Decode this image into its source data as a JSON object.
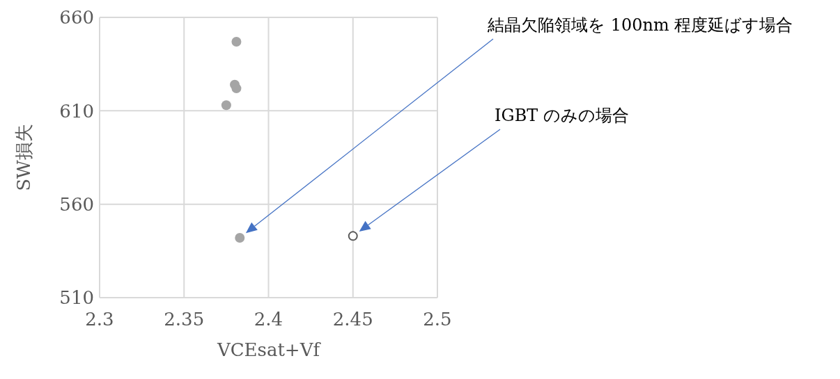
{
  "chart_data": {
    "type": "scatter",
    "xlabel": "VCEsat+Vf",
    "ylabel": "SW損失",
    "series": [
      {
        "color": "#a5a5a5",
        "x": [
          2.381,
          2.38,
          2.381,
          2.375,
          2.383
        ],
        "values": [
          647,
          624,
          622,
          613,
          542
        ]
      },
      {
        "color": "#595959",
        "x": [
          2.45
        ],
        "values": [
          543
        ]
      }
    ],
    "xlim": [
      2.3,
      2.5
    ],
    "xticks": [
      2.3,
      2.35,
      2.4,
      2.45,
      2.5
    ],
    "ylim": [
      510,
      660
    ],
    "yticks": [
      510,
      560,
      610,
      660
    ],
    "grid": true,
    "legend": false,
    "marker": "circle",
    "annotations": [
      "結晶欠陥領域を 100nm 程度延ばす場合",
      "IGBT のみの場合"
    ]
  }
}
